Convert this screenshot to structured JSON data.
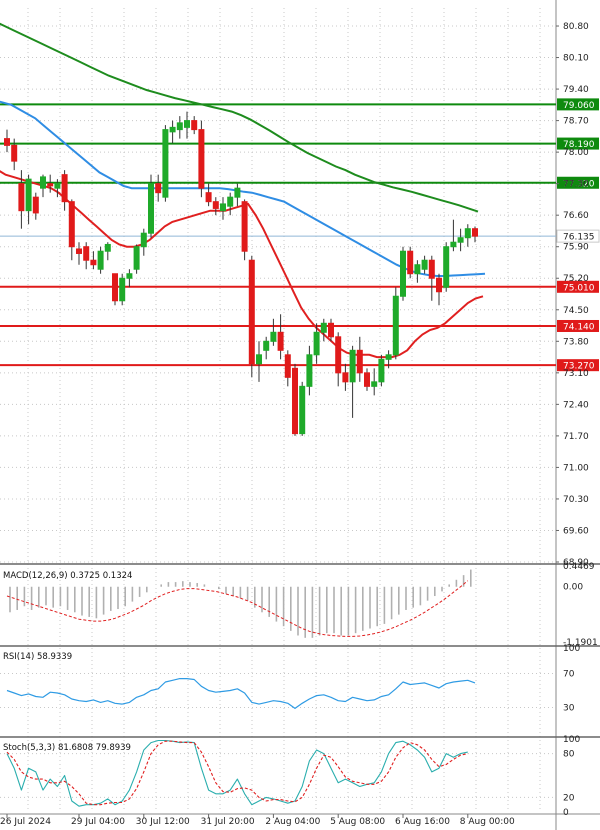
{
  "colors": {
    "bull": "#1faa2a",
    "bear": "#e01a1a",
    "ma_fast": "#e02020",
    "ma_mid": "#2f8de4",
    "ma_slow": "#1e8c1e",
    "support": "#e01a1a",
    "resistance": "#0e8a0e",
    "current_price": "#90b8d8",
    "grid": "#c8c8c8",
    "macd_hist": "#b0b0b0",
    "macd_signal": "#e02020",
    "rsi": "#2f9be4",
    "stoch_k": "#2aaeae",
    "stoch_d": "#e02020"
  },
  "chart_data": {
    "type": "candlestick",
    "instrument_interval": "",
    "price_axis": {
      "min": 68.9,
      "max": 81.2,
      "ticks": [
        "80.80",
        "80.10",
        "79.40",
        "78.70",
        "78.00",
        "77.30",
        "76.60",
        "75.90",
        "75.20",
        "74.50",
        "73.80",
        "73.10",
        "72.40",
        "71.70",
        "71.00",
        "70.30",
        "69.60",
        "68.90"
      ]
    },
    "time_axis": {
      "labels": [
        {
          "text": "26 Jul 2024",
          "index": 0
        },
        {
          "text": "29 Jul 04:00",
          "index": 10
        },
        {
          "text": "30 Jul 12:00",
          "index": 19
        },
        {
          "text": "31 Jul 20:00",
          "index": 28
        },
        {
          "text": "2 Aug 04:00",
          "index": 37
        },
        {
          "text": "5 Aug 08:00",
          "index": 46
        },
        {
          "text": "6 Aug 16:00",
          "index": 55
        },
        {
          "text": "8 Aug 00:00",
          "index": 64
        }
      ]
    },
    "current_price": {
      "value": 76.135,
      "label": "76.135"
    },
    "levels": [
      {
        "value": 79.06,
        "label": "79.060",
        "kind": "resistance"
      },
      {
        "value": 78.19,
        "label": "78.190",
        "kind": "resistance"
      },
      {
        "value": 77.32,
        "label": "77.320",
        "kind": "resistance"
      },
      {
        "value": 75.01,
        "label": "75.010",
        "kind": "support"
      },
      {
        "value": 74.14,
        "label": "74.140",
        "kind": "support"
      },
      {
        "value": 73.27,
        "label": "73.270",
        "kind": "support"
      }
    ],
    "candles": [
      {
        "o": 78.3,
        "h": 78.5,
        "l": 78.0,
        "c": 78.15
      },
      {
        "o": 78.15,
        "h": 78.3,
        "l": 77.6,
        "c": 77.8
      },
      {
        "o": 77.3,
        "h": 77.6,
        "l": 76.3,
        "c": 76.7
      },
      {
        "o": 76.7,
        "h": 77.5,
        "l": 76.4,
        "c": 77.4
      },
      {
        "o": 77.0,
        "h": 77.1,
        "l": 76.5,
        "c": 76.65
      },
      {
        "o": 77.2,
        "h": 77.5,
        "l": 77.0,
        "c": 77.45
      },
      {
        "o": 77.3,
        "h": 77.5,
        "l": 77.1,
        "c": 77.25
      },
      {
        "o": 77.2,
        "h": 77.4,
        "l": 77.0,
        "c": 77.3
      },
      {
        "o": 77.5,
        "h": 77.6,
        "l": 76.7,
        "c": 76.9
      },
      {
        "o": 76.9,
        "h": 76.95,
        "l": 75.6,
        "c": 75.9
      },
      {
        "o": 75.85,
        "h": 76.0,
        "l": 75.5,
        "c": 75.75
      },
      {
        "o": 75.9,
        "h": 76.0,
        "l": 75.4,
        "c": 75.6
      },
      {
        "o": 75.6,
        "h": 75.8,
        "l": 75.4,
        "c": 75.5
      },
      {
        "o": 75.4,
        "h": 75.9,
        "l": 75.3,
        "c": 75.8
      },
      {
        "o": 75.8,
        "h": 76.0,
        "l": 75.6,
        "c": 75.95
      },
      {
        "o": 75.3,
        "h": 75.3,
        "l": 74.6,
        "c": 74.7
      },
      {
        "o": 74.7,
        "h": 75.3,
        "l": 74.6,
        "c": 75.2
      },
      {
        "o": 75.2,
        "h": 75.4,
        "l": 75.0,
        "c": 75.3
      },
      {
        "o": 75.4,
        "h": 75.95,
        "l": 75.3,
        "c": 75.9
      },
      {
        "o": 75.9,
        "h": 76.3,
        "l": 75.7,
        "c": 76.2
      },
      {
        "o": 76.2,
        "h": 77.5,
        "l": 76.1,
        "c": 77.3
      },
      {
        "o": 77.3,
        "h": 77.5,
        "l": 76.9,
        "c": 77.1
      },
      {
        "o": 77.0,
        "h": 78.6,
        "l": 76.9,
        "c": 78.5
      },
      {
        "o": 78.45,
        "h": 78.7,
        "l": 78.2,
        "c": 78.55
      },
      {
        "o": 78.5,
        "h": 78.8,
        "l": 78.3,
        "c": 78.65
      },
      {
        "o": 78.55,
        "h": 78.9,
        "l": 78.3,
        "c": 78.7
      },
      {
        "o": 78.7,
        "h": 78.8,
        "l": 78.4,
        "c": 78.5
      },
      {
        "o": 78.5,
        "h": 78.7,
        "l": 77.0,
        "c": 77.2
      },
      {
        "o": 77.1,
        "h": 77.3,
        "l": 76.8,
        "c": 76.9
      },
      {
        "o": 76.9,
        "h": 77.0,
        "l": 76.6,
        "c": 76.75
      },
      {
        "o": 76.7,
        "h": 77.0,
        "l": 76.5,
        "c": 76.85
      },
      {
        "o": 76.8,
        "h": 77.1,
        "l": 76.6,
        "c": 77.0
      },
      {
        "o": 77.0,
        "h": 77.3,
        "l": 76.8,
        "c": 77.2
      },
      {
        "o": 76.9,
        "h": 76.95,
        "l": 75.6,
        "c": 75.8
      },
      {
        "o": 75.6,
        "h": 75.7,
        "l": 73.0,
        "c": 73.3
      },
      {
        "o": 73.3,
        "h": 73.8,
        "l": 72.9,
        "c": 73.5
      },
      {
        "o": 73.6,
        "h": 73.9,
        "l": 73.4,
        "c": 73.8
      },
      {
        "o": 73.8,
        "h": 74.3,
        "l": 73.7,
        "c": 74.0
      },
      {
        "o": 74.0,
        "h": 74.4,
        "l": 73.4,
        "c": 73.6
      },
      {
        "o": 73.5,
        "h": 73.6,
        "l": 72.8,
        "c": 73.0
      },
      {
        "o": 73.2,
        "h": 73.3,
        "l": 71.7,
        "c": 71.75
      },
      {
        "o": 71.75,
        "h": 72.9,
        "l": 71.7,
        "c": 72.8
      },
      {
        "o": 72.8,
        "h": 73.7,
        "l": 72.6,
        "c": 73.5
      },
      {
        "o": 73.5,
        "h": 74.2,
        "l": 73.3,
        "c": 74.0
      },
      {
        "o": 74.0,
        "h": 74.3,
        "l": 73.8,
        "c": 74.2
      },
      {
        "o": 74.2,
        "h": 74.3,
        "l": 73.8,
        "c": 73.9
      },
      {
        "o": 73.9,
        "h": 74.0,
        "l": 72.8,
        "c": 73.1
      },
      {
        "o": 73.1,
        "h": 73.3,
        "l": 72.7,
        "c": 72.9
      },
      {
        "o": 72.9,
        "h": 73.7,
        "l": 72.1,
        "c": 73.6
      },
      {
        "o": 73.6,
        "h": 73.9,
        "l": 72.9,
        "c": 73.1
      },
      {
        "o": 73.1,
        "h": 73.2,
        "l": 72.7,
        "c": 72.8
      },
      {
        "o": 72.8,
        "h": 73.2,
        "l": 72.6,
        "c": 72.9
      },
      {
        "o": 72.9,
        "h": 73.5,
        "l": 72.8,
        "c": 73.4
      },
      {
        "o": 73.4,
        "h": 73.6,
        "l": 73.2,
        "c": 73.5
      },
      {
        "o": 73.5,
        "h": 75.0,
        "l": 73.4,
        "c": 74.8
      },
      {
        "o": 74.8,
        "h": 75.9,
        "l": 74.7,
        "c": 75.8
      },
      {
        "o": 75.8,
        "h": 75.9,
        "l": 75.2,
        "c": 75.3
      },
      {
        "o": 75.3,
        "h": 75.6,
        "l": 75.1,
        "c": 75.5
      },
      {
        "o": 75.4,
        "h": 75.7,
        "l": 75.3,
        "c": 75.6
      },
      {
        "o": 75.6,
        "h": 75.7,
        "l": 74.7,
        "c": 75.2
      },
      {
        "o": 75.2,
        "h": 75.3,
        "l": 74.6,
        "c": 74.9
      },
      {
        "o": 75.0,
        "h": 76.0,
        "l": 74.9,
        "c": 75.9
      },
      {
        "o": 75.9,
        "h": 76.5,
        "l": 75.8,
        "c": 76.0
      },
      {
        "o": 76.0,
        "h": 76.3,
        "l": 75.8,
        "c": 76.1
      },
      {
        "o": 76.1,
        "h": 76.4,
        "l": 75.9,
        "c": 76.3
      },
      {
        "o": 76.3,
        "h": 76.35,
        "l": 76.0,
        "c": 76.135
      }
    ],
    "ma_fast": [
      77.6,
      77.5,
      77.45,
      77.4,
      77.35,
      77.3,
      77.25,
      77.2,
      77.1,
      76.95,
      76.8,
      76.65,
      76.5,
      76.35,
      76.2,
      76.05,
      75.95,
      75.9,
      75.9,
      75.95,
      76.05,
      76.2,
      76.35,
      76.45,
      76.5,
      76.55,
      76.6,
      76.65,
      76.7,
      76.7,
      76.7,
      76.75,
      76.8,
      76.85,
      76.6,
      76.3,
      75.95,
      75.6,
      75.25,
      74.9,
      74.55,
      74.3,
      74.1,
      73.95,
      73.8,
      73.65,
      73.55,
      73.5,
      73.5,
      73.5,
      73.45,
      73.45,
      73.45,
      73.5,
      73.6,
      73.8,
      73.95,
      74.05,
      74.1,
      74.2,
      74.35,
      74.5,
      74.65,
      74.75,
      74.8
    ],
    "ma_mid": [
      79.15,
      79.1,
      79.05,
      78.95,
      78.85,
      78.75,
      78.6,
      78.45,
      78.3,
      78.15,
      78.0,
      77.85,
      77.7,
      77.55,
      77.45,
      77.35,
      77.25,
      77.2,
      77.2,
      77.2,
      77.2,
      77.2,
      77.2,
      77.2,
      77.2,
      77.2,
      77.2,
      77.2,
      77.2,
      77.18,
      77.15,
      77.12,
      77.1,
      77.05,
      77.0,
      76.95,
      76.9,
      76.8,
      76.7,
      76.6,
      76.5,
      76.4,
      76.3,
      76.2,
      76.1,
      76.0,
      75.9,
      75.8,
      75.7,
      75.6,
      75.5,
      75.42,
      75.35,
      75.3,
      75.27,
      75.25,
      75.25,
      75.26,
      75.27,
      75.28,
      75.29,
      75.3
    ],
    "ma_slow": [
      80.9,
      80.8,
      80.7,
      80.6,
      80.5,
      80.4,
      80.3,
      80.2,
      80.1,
      80.0,
      79.9,
      79.8,
      79.7,
      79.62,
      79.54,
      79.46,
      79.38,
      79.32,
      79.26,
      79.2,
      79.15,
      79.1,
      79.05,
      79.0,
      78.95,
      78.9,
      78.82,
      78.72,
      78.6,
      78.48,
      78.35,
      78.22,
      78.1,
      77.98,
      77.88,
      77.78,
      77.68,
      77.6,
      77.5,
      77.42,
      77.34,
      77.28,
      77.22,
      77.17,
      77.12,
      77.06,
      77.0,
      76.94,
      76.88,
      76.82,
      76.75,
      76.68
    ],
    "macd": {
      "label": "MACD(12,26,9) 0.3725 0.1324",
      "ticks": [
        "0.4469",
        "0.00",
        "-1.1901"
      ],
      "range": [
        -1.1901,
        0.4469
      ],
      "hist": [
        -0.55,
        -0.5,
        -0.42,
        -0.5,
        -0.45,
        -0.4,
        -0.45,
        -0.42,
        -0.5,
        -0.55,
        -0.62,
        -0.65,
        -0.68,
        -0.6,
        -0.52,
        -0.48,
        -0.42,
        -0.32,
        -0.22,
        -0.12,
        0.0,
        0.05,
        0.1,
        0.1,
        0.12,
        0.1,
        0.08,
        0.05,
        0.0,
        -0.05,
        -0.15,
        -0.2,
        -0.25,
        -0.3,
        -0.45,
        -0.55,
        -0.65,
        -0.75,
        -0.85,
        -0.95,
        -1.05,
        -1.1,
        -1.1,
        -1.05,
        -1.0,
        -1.0,
        -1.05,
        -1.05,
        -1.0,
        -0.95,
        -0.9,
        -0.85,
        -0.8,
        -0.7,
        -0.6,
        -0.5,
        -0.45,
        -0.4,
        -0.3,
        -0.2,
        -0.1,
        0.05,
        0.15,
        0.25,
        0.37
      ],
      "signal": [
        -0.2,
        -0.25,
        -0.3,
        -0.35,
        -0.4,
        -0.45,
        -0.5,
        -0.55,
        -0.6,
        -0.65,
        -0.7,
        -0.72,
        -0.74,
        -0.74,
        -0.72,
        -0.68,
        -0.62,
        -0.56,
        -0.48,
        -0.4,
        -0.3,
        -0.22,
        -0.15,
        -0.1,
        -0.06,
        -0.04,
        -0.04,
        -0.06,
        -0.08,
        -0.1,
        -0.14,
        -0.18,
        -0.22,
        -0.28,
        -0.34,
        -0.42,
        -0.5,
        -0.58,
        -0.66,
        -0.74,
        -0.82,
        -0.9,
        -0.96,
        -1.0,
        -1.03,
        -1.05,
        -1.06,
        -1.07,
        -1.07,
        -1.06,
        -1.04,
        -1.01,
        -0.97,
        -0.92,
        -0.86,
        -0.79,
        -0.72,
        -0.64,
        -0.55,
        -0.45,
        -0.35,
        -0.24,
        -0.12,
        0.0,
        0.13
      ]
    },
    "rsi": {
      "label": "RSI(14) 58.9339",
      "ticks": [
        "100",
        "70",
        "30",
        "0"
      ],
      "range": [
        0,
        100
      ],
      "values": [
        50,
        47,
        44,
        46,
        43,
        42,
        48,
        47,
        45,
        40,
        38,
        37,
        39,
        36,
        38,
        35,
        34,
        36,
        42,
        45,
        50,
        52,
        60,
        62,
        64,
        64,
        63,
        55,
        50,
        48,
        49,
        50,
        52,
        47,
        36,
        34,
        36,
        38,
        37,
        35,
        29,
        35,
        40,
        44,
        45,
        42,
        38,
        37,
        42,
        40,
        38,
        39,
        43,
        45,
        52,
        60,
        57,
        58,
        59,
        56,
        53,
        58,
        60,
        61,
        62,
        59
      ]
    },
    "stoch": {
      "label": "Stoch(5,3,3) 81.6808 79.8939",
      "ticks": [
        "100",
        "80",
        "20",
        "0"
      ],
      "range": [
        0,
        100
      ],
      "k": [
        80,
        60,
        30,
        60,
        55,
        30,
        45,
        35,
        50,
        15,
        8,
        10,
        10,
        12,
        18,
        10,
        15,
        30,
        55,
        85,
        95,
        98,
        98,
        97,
        95,
        96,
        95,
        60,
        30,
        25,
        25,
        30,
        45,
        25,
        10,
        15,
        20,
        18,
        15,
        12,
        15,
        35,
        70,
        85,
        80,
        60,
        40,
        45,
        40,
        35,
        38,
        40,
        55,
        80,
        95,
        97,
        92,
        85,
        75,
        55,
        60,
        80,
        75,
        80,
        82
      ],
      "d": [
        82,
        72,
        55,
        48,
        45,
        45,
        40,
        40,
        42,
        35,
        25,
        12,
        10,
        10,
        12,
        13,
        13,
        18,
        32,
        55,
        80,
        92,
        97,
        97,
        96,
        95,
        95,
        82,
        62,
        40,
        28,
        27,
        32,
        33,
        30,
        20,
        15,
        17,
        17,
        15,
        14,
        20,
        38,
        60,
        78,
        75,
        62,
        48,
        42,
        40,
        38,
        38,
        42,
        55,
        75,
        88,
        95,
        92,
        85,
        72,
        62,
        65,
        72,
        78,
        80
      ]
    }
  }
}
